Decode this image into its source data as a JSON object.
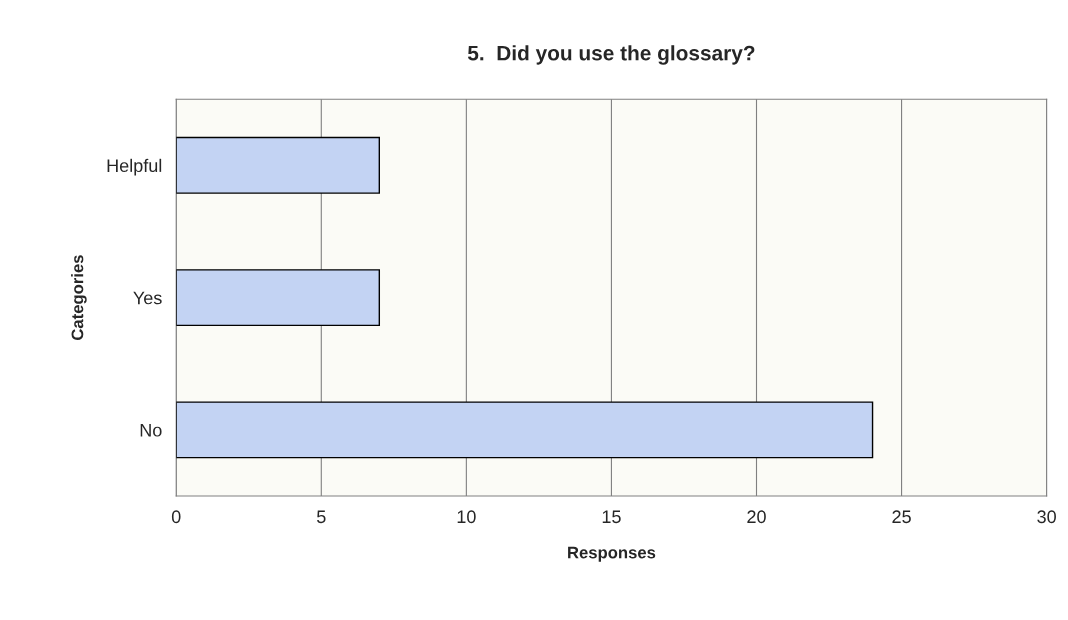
{
  "chart_data": {
    "type": "bar",
    "orientation": "horizontal",
    "title": "5.  Did you use the glossary?",
    "xlabel": "Responses",
    "ylabel": "Categories",
    "categories": [
      "Helpful",
      "Yes",
      "No"
    ],
    "values": [
      7,
      7,
      24
    ],
    "color": "#c3d3f3",
    "xlim": [
      0,
      30
    ],
    "xticks": [
      0,
      5,
      10,
      15,
      20,
      25,
      30
    ],
    "grid": "x"
  }
}
